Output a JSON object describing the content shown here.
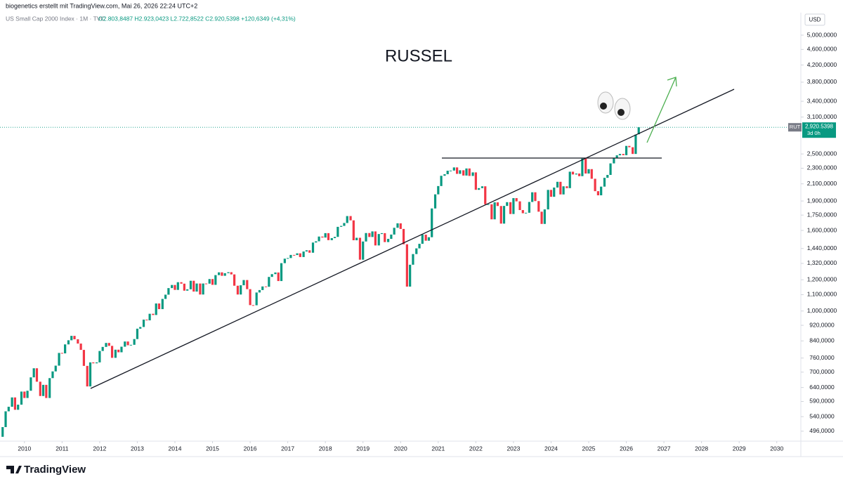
{
  "header": {
    "credit": "biogenetics erstellt mit TradingView.com, Mai 26, 2026 22:24 UTC+2",
    "footer": "TradingView"
  },
  "chart_data": {
    "type": "candlestick",
    "title": "RUSSEL",
    "symbol": "US Small Cap 2000 Index · 1M · TVC",
    "ohlc_text": "O2.803,8487 H2.923,0423 L2.722,8522 C2.920,5398 +120,6349 (+4,31%)",
    "currency": "USD",
    "ticker": "RUT",
    "last_label": "2,920.5398",
    "countdown": "3d 0h",
    "log_scale": true,
    "grid": false,
    "up_color": "#089981",
    "down_color": "#f23645",
    "xlim": [
      2009.35,
      2030.64
    ],
    "xticks": [
      2010,
      2011,
      2012,
      2013,
      2014,
      2015,
      2016,
      2017,
      2018,
      2019,
      2020,
      2021,
      2022,
      2023,
      2024,
      2025,
      2026,
      2027,
      2028,
      2029,
      2030
    ],
    "ylim": [
      468,
      5274
    ],
    "yticks": [
      {
        "value": 496,
        "label": "496,0000"
      },
      {
        "value": 540,
        "label": "540,0000"
      },
      {
        "value": 590,
        "label": "590,0000"
      },
      {
        "value": 640,
        "label": "640,0000"
      },
      {
        "value": 700,
        "label": "700,0000"
      },
      {
        "value": 760,
        "label": "760,0000"
      },
      {
        "value": 840,
        "label": "840,0000"
      },
      {
        "value": 920,
        "label": "920,0000"
      },
      {
        "value": 1000,
        "label": "1,000,0000"
      },
      {
        "value": 1100,
        "label": "1,100,0000"
      },
      {
        "value": 1200,
        "label": "1,200,0000"
      },
      {
        "value": 1320,
        "label": "1,320,0000"
      },
      {
        "value": 1440,
        "label": "1,440,0000"
      },
      {
        "value": 1600,
        "label": "1,600,0000"
      },
      {
        "value": 1750,
        "label": "1,750,0000"
      },
      {
        "value": 1900,
        "label": "1,900,0000"
      },
      {
        "value": 2100,
        "label": "2,100,0000"
      },
      {
        "value": 2300,
        "label": "2,300,0000"
      },
      {
        "value": 2500,
        "label": "2,500,0000"
      },
      {
        "value": 3100,
        "label": "3,100,0000"
      },
      {
        "value": 3400,
        "label": "3,400,0000"
      },
      {
        "value": 3800,
        "label": "3,800,0000"
      },
      {
        "value": 4200,
        "label": "4,200,0000"
      },
      {
        "value": 4600,
        "label": "4,600,0000"
      },
      {
        "value": 5000,
        "label": "5,000,0000"
      }
    ],
    "x": [
      2009.42,
      2009.5,
      2009.58,
      2009.67,
      2009.75,
      2009.83,
      2009.92,
      2010,
      2010.08,
      2010.17,
      2010.25,
      2010.33,
      2010.42,
      2010.5,
      2010.58,
      2010.67,
      2010.75,
      2010.83,
      2010.92,
      2011,
      2011.08,
      2011.17,
      2011.25,
      2011.33,
      2011.42,
      2011.5,
      2011.58,
      2011.67,
      2011.75,
      2011.83,
      2011.92,
      2012,
      2012.08,
      2012.17,
      2012.25,
      2012.33,
      2012.42,
      2012.5,
      2012.58,
      2012.67,
      2012.75,
      2012.83,
      2012.92,
      2013,
      2013.08,
      2013.17,
      2013.25,
      2013.33,
      2013.42,
      2013.5,
      2013.58,
      2013.67,
      2013.75,
      2013.83,
      2013.92,
      2014,
      2014.08,
      2014.17,
      2014.25,
      2014.33,
      2014.42,
      2014.5,
      2014.58,
      2014.67,
      2014.75,
      2014.83,
      2014.92,
      2015,
      2015.08,
      2015.17,
      2015.25,
      2015.33,
      2015.42,
      2015.5,
      2015.58,
      2015.67,
      2015.75,
      2015.83,
      2015.92,
      2016,
      2016.08,
      2016.17,
      2016.25,
      2016.33,
      2016.42,
      2016.5,
      2016.58,
      2016.67,
      2016.75,
      2016.83,
      2016.92,
      2017,
      2017.08,
      2017.17,
      2017.25,
      2017.33,
      2017.42,
      2017.5,
      2017.58,
      2017.67,
      2017.75,
      2017.83,
      2017.92,
      2018,
      2018.08,
      2018.17,
      2018.25,
      2018.33,
      2018.42,
      2018.5,
      2018.58,
      2018.67,
      2018.75,
      2018.83,
      2018.92,
      2019,
      2019.08,
      2019.17,
      2019.25,
      2019.33,
      2019.42,
      2019.5,
      2019.58,
      2019.67,
      2019.75,
      2019.83,
      2019.92,
      2020,
      2020.08,
      2020.17,
      2020.25,
      2020.33,
      2020.42,
      2020.5,
      2020.58,
      2020.67,
      2020.75,
      2020.83,
      2020.92,
      2021,
      2021.08,
      2021.17,
      2021.25,
      2021.33,
      2021.42,
      2021.5,
      2021.58,
      2021.67,
      2021.75,
      2021.83,
      2021.92,
      2022,
      2022.08,
      2022.17,
      2022.25,
      2022.33,
      2022.42,
      2022.5,
      2022.58,
      2022.67,
      2022.75,
      2022.83,
      2022.92,
      2023,
      2023.08,
      2023.17,
      2023.25,
      2023.33,
      2023.42,
      2023.5,
      2023.58,
      2023.67,
      2023.75,
      2023.83,
      2023.92,
      2024,
      2024.08,
      2024.17,
      2024.25,
      2024.33,
      2024.42,
      2024.5,
      2024.58,
      2024.67,
      2024.75,
      2024.83,
      2024.92,
      2025,
      2025.08,
      2025.17,
      2025.25,
      2025.33,
      2025.42,
      2025.5,
      2025.58,
      2025.67,
      2025.75,
      2025.83,
      2025.92,
      2026,
      2026.08,
      2026.17,
      2026.25,
      2026.33
    ],
    "open": [
      480,
      508,
      557,
      572,
      604,
      562,
      579,
      625,
      602,
      628,
      679,
      716,
      662,
      609,
      650,
      602,
      676,
      703,
      727,
      783,
      781,
      823,
      843,
      865,
      848,
      827,
      797,
      726,
      644,
      741,
      737,
      741,
      792,
      811,
      830,
      816,
      761,
      798,
      786,
      812,
      837,
      819,
      821,
      849,
      902,
      911,
      951,
      947,
      984,
      977,
      1045,
      1011,
      1073,
      1100,
      1143,
      1164,
      1131,
      1183,
      1173,
      1126,
      1135,
      1193,
      1120,
      1174,
      1101,
      1174,
      1173,
      1205,
      1165,
      1233,
      1253,
      1228,
      1247,
      1254,
      1238,
      1159,
      1101,
      1162,
      1198,
      1136,
      1035,
      1034,
      1114,
      1130,
      1154,
      1152,
      1220,
      1240,
      1252,
      1191,
      1322,
      1357,
      1362,
      1387,
      1386,
      1400,
      1370,
      1415,
      1425,
      1405,
      1491,
      1502,
      1544,
      1535,
      1575,
      1512,
      1530,
      1541,
      1634,
      1643,
      1671,
      1740,
      1697,
      1511,
      1533,
      1349,
      1500,
      1576,
      1540,
      1591,
      1466,
      1567,
      1575,
      1495,
      1523,
      1562,
      1625,
      1668,
      1614,
      1476,
      1153,
      1310,
      1394,
      1441,
      1480,
      1561,
      1507,
      1538,
      1819,
      1975,
      2073,
      2201,
      2221,
      2267,
      2269,
      2311,
      2226,
      2273,
      2204,
      2297,
      2199,
      2245,
      2028,
      2048,
      2070,
      1864,
      1864,
      1707,
      1885,
      1845,
      1665,
      1846,
      1887,
      1761,
      1932,
      1896,
      1802,
      1769,
      1774,
      1889,
      1999,
      1899,
      1785,
      1662,
      1809,
      2027,
      1947,
      2055,
      2125,
      1974,
      2070,
      2048,
      2254,
      2218,
      2230,
      2196,
      2434,
      2230,
      2288,
      2163,
      2012,
      1964,
      2066,
      2175,
      2212,
      2366,
      2436,
      2480,
      2500,
      2482,
      2620,
      2600,
      2500,
      2803.8487
    ],
    "close": [
      508,
      557,
      572,
      604,
      562,
      579,
      625,
      602,
      628,
      679,
      716,
      662,
      609,
      650,
      602,
      676,
      703,
      727,
      783,
      781,
      823,
      843,
      865,
      848,
      827,
      797,
      726,
      644,
      741,
      737,
      741,
      792,
      811,
      830,
      816,
      761,
      798,
      786,
      812,
      837,
      819,
      821,
      849,
      902,
      911,
      951,
      947,
      984,
      977,
      1045,
      1011,
      1073,
      1100,
      1143,
      1164,
      1131,
      1183,
      1173,
      1126,
      1135,
      1193,
      1120,
      1174,
      1101,
      1174,
      1173,
      1205,
      1165,
      1233,
      1253,
      1228,
      1247,
      1254,
      1238,
      1159,
      1101,
      1162,
      1198,
      1136,
      1035,
      1034,
      1114,
      1130,
      1154,
      1152,
      1220,
      1240,
      1252,
      1191,
      1322,
      1357,
      1362,
      1387,
      1386,
      1400,
      1370,
      1415,
      1425,
      1405,
      1491,
      1502,
      1544,
      1535,
      1575,
      1512,
      1530,
      1541,
      1634,
      1643,
      1671,
      1740,
      1697,
      1511,
      1533,
      1349,
      1500,
      1576,
      1540,
      1591,
      1466,
      1567,
      1575,
      1495,
      1523,
      1562,
      1625,
      1668,
      1614,
      1476,
      1153,
      1310,
      1394,
      1441,
      1480,
      1561,
      1507,
      1538,
      1819,
      1975,
      2073,
      2201,
      2221,
      2267,
      2269,
      2311,
      2226,
      2273,
      2204,
      2297,
      2199,
      2245,
      2028,
      2048,
      2070,
      1864,
      1864,
      1707,
      1885,
      1845,
      1665,
      1846,
      1887,
      1761,
      1932,
      1896,
      1802,
      1769,
      1774,
      1889,
      1999,
      1899,
      1785,
      1662,
      1809,
      2027,
      1947,
      2055,
      2125,
      1974,
      2070,
      2048,
      2254,
      2218,
      2230,
      2196,
      2434,
      2230,
      2288,
      2163,
      2012,
      1964,
      2066,
      2175,
      2212,
      2366,
      2436,
      2480,
      2500,
      2482,
      2620,
      2600,
      2500,
      2800,
      2920.5398
    ]
  }
}
